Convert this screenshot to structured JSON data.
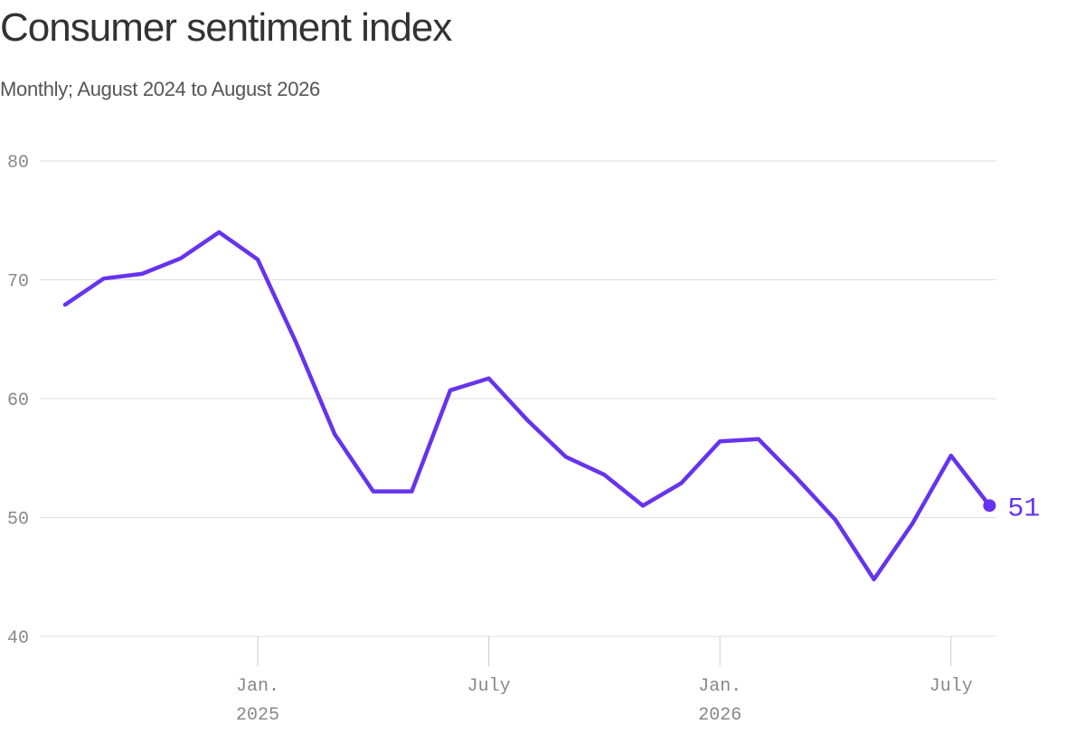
{
  "title": "Consumer sentiment index",
  "subtitle": "Monthly; August 2024 to August 2026",
  "colors": {
    "line": "#6633ee",
    "grid": "#dddddd",
    "axis": "#cccccc",
    "tick_text": "#888888",
    "title": "#333333",
    "subtitle": "#555555"
  },
  "chart_data": {
    "type": "line",
    "title": "Consumer sentiment index",
    "subtitle": "Monthly; August 2024 to August 2026",
    "xlabel": "",
    "ylabel": "",
    "ylim": [
      40,
      80
    ],
    "yticks": [
      40,
      50,
      60,
      70,
      80
    ],
    "grid": true,
    "x": [
      "2024-08",
      "2024-09",
      "2024-10",
      "2024-11",
      "2024-12",
      "2025-01",
      "2025-02",
      "2025-03",
      "2025-04",
      "2025-05",
      "2025-06",
      "2025-07",
      "2025-08",
      "2025-09",
      "2025-10",
      "2025-11",
      "2025-12",
      "2026-01",
      "2026-02",
      "2026-03",
      "2026-04",
      "2026-05",
      "2026-06",
      "2026-07",
      "2026-08"
    ],
    "series": [
      {
        "values": [
          67.9,
          70.1,
          70.5,
          71.8,
          74.0,
          71.7,
          64.7,
          57.0,
          52.2,
          52.2,
          60.7,
          61.7,
          58.2,
          55.1,
          53.6,
          51.0,
          52.9,
          56.4,
          56.6,
          53.3,
          49.8,
          44.8,
          49.5,
          55.2,
          51.0
        ]
      }
    ],
    "xticks": [
      {
        "date": "2025-01",
        "label": "Jan.",
        "year": "2025"
      },
      {
        "date": "2025-07",
        "label": "July",
        "year": ""
      },
      {
        "date": "2026-01",
        "label": "Jan.",
        "year": "2026"
      },
      {
        "date": "2026-07",
        "label": "July",
        "year": ""
      }
    ],
    "end_label": "51"
  }
}
